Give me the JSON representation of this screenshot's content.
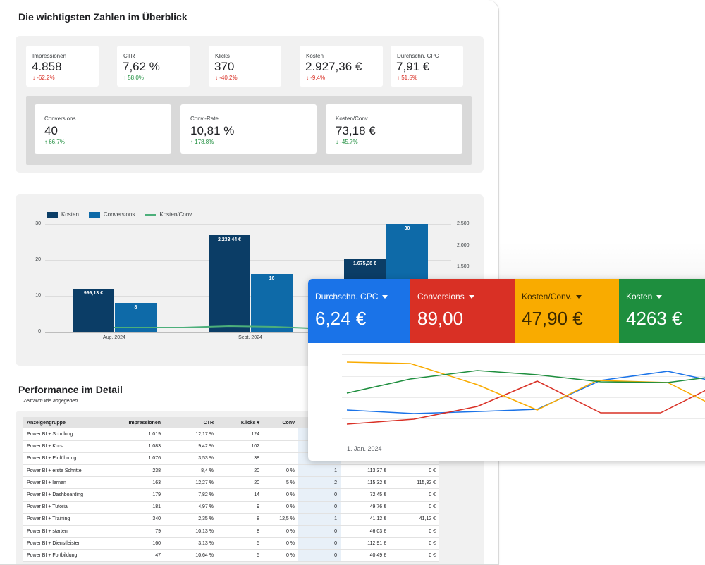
{
  "report": {
    "title": "Die wichtigsten Zahlen im Überblick",
    "kpis_top": [
      {
        "label": "Impressionen",
        "value": "4.858",
        "change": "-62,2%",
        "direction": "down"
      },
      {
        "label": "CTR",
        "value": "7,62 %",
        "change": "58,0%",
        "direction": "up"
      },
      {
        "label": "Klicks",
        "value": "370",
        "change": "-40,2%",
        "direction": "down"
      },
      {
        "label": "Kosten",
        "value": "2.927,36 €",
        "change": "-9,4%",
        "direction": "down"
      },
      {
        "label": "Durchschn. CPC",
        "value": "7,91 €",
        "change": "51,5%",
        "direction": "up_negative"
      }
    ],
    "kpis_bottom": [
      {
        "label": "Conversions",
        "value": "40",
        "change": "66,7%",
        "direction": "up"
      },
      {
        "label": "Conv.-Rate",
        "value": "10,81 %",
        "change": "178,8%",
        "direction": "up"
      },
      {
        "label": "Kosten/Conv.",
        "value": "73,18 €",
        "change": "-45,7%",
        "direction": "down_positive"
      }
    ],
    "arrow_up": "↑",
    "arrow_down": "↓"
  },
  "chart_data": [
    {
      "type": "bar",
      "legend": [
        "Kosten",
        "Conversions",
        "Kosten/Conv."
      ],
      "categories": [
        "Aug. 2024",
        "Sept. 2024",
        ""
      ],
      "series": [
        {
          "name": "Kosten",
          "values": [
            999.13,
            2233.44,
            1675.38
          ],
          "labels": [
            "999,13 €",
            "2.233,44 €",
            "1.675,38 €"
          ],
          "color": "#0b3d66"
        },
        {
          "name": "Conversions",
          "values": [
            8,
            16,
            30
          ],
          "labels": [
            "8",
            "16",
            "30"
          ],
          "color": "#0e6aa8"
        },
        {
          "name": "Kosten/Conv.",
          "type": "line",
          "color": "#4caf7a"
        }
      ],
      "y_left_ticks": [
        "30",
        "20",
        "10",
        "0"
      ],
      "y_left_range": [
        0,
        30
      ],
      "y_right_ticks": [
        "2.500",
        "2.000",
        "1.500"
      ],
      "y_right_range": [
        0,
        2500
      ],
      "legend_position": "top-left",
      "grid": true
    },
    {
      "type": "line",
      "series": [
        {
          "name": "Durchschn. CPC",
          "color": "#1a73e8"
        },
        {
          "name": "Conversions",
          "color": "#d93025"
        },
        {
          "name": "Kosten/Conv.",
          "color": "#f9ab00"
        },
        {
          "name": "Kosten",
          "color": "#1e8e3e"
        }
      ],
      "x_start_label": "1. Jan. 2024",
      "grid": true
    }
  ],
  "performance": {
    "title": "Performance im Detail",
    "subtitle": "Zeitraum wie angegeben",
    "columns": [
      "Anzeigengruppe",
      "Impressionen",
      "CTR",
      "Klicks ▾",
      "Conv",
      "",
      "",
      ""
    ],
    "rows": [
      [
        "Power BI + Schulung",
        "1.019",
        "12,17 %",
        "124",
        "",
        "",
        "",
        ""
      ],
      [
        "Power BI + Kurs",
        "1.083",
        "9,42 %",
        "102",
        "",
        "",
        "",
        ""
      ],
      [
        "Power BI + Einführung",
        "1.076",
        "3,53 %",
        "38",
        "",
        "",
        "",
        ""
      ],
      [
        "Power BI + erste Schritte",
        "238",
        "8,4 %",
        "20",
        "0 %",
        "1",
        "113,37 €",
        "0 €"
      ],
      [
        "Power BI + lernen",
        "163",
        "12,27 %",
        "20",
        "5 %",
        "2",
        "115,32 €",
        "115,32 €"
      ],
      [
        "Power BI + Dashboarding",
        "179",
        "7,82 %",
        "14",
        "0 %",
        "0",
        "72,45 €",
        "0 €"
      ],
      [
        "Power BI + Tutorial",
        "181",
        "4,97 %",
        "9",
        "0 %",
        "0",
        "49,76 €",
        "0 €"
      ],
      [
        "Power BI + Training",
        "340",
        "2,35 %",
        "8",
        "12,5 %",
        "1",
        "41,12 €",
        "41,12 €"
      ],
      [
        "Power BI + starten",
        "79",
        "10,13 %",
        "8",
        "0 %",
        "0",
        "46,03 €",
        "0 €"
      ],
      [
        "Power BI + Dienstleister",
        "160",
        "3,13 %",
        "5",
        "0 %",
        "0",
        "112,91 €",
        "0 €"
      ],
      [
        "Power BI + Fortbildung",
        "47",
        "10,64 %",
        "5",
        "0 %",
        "0",
        "40,49 €",
        "0 €"
      ]
    ]
  },
  "dashboard": {
    "kpis": [
      {
        "label": "Durchschn. CPC",
        "value": "6,24 €",
        "color": "#1a73e8",
        "text_color": "#ffffff"
      },
      {
        "label": "Conversions",
        "value": "89,00",
        "color": "#d93025",
        "text_color": "#ffffff"
      },
      {
        "label": "Kosten/Conv.",
        "value": "47,90 €",
        "color": "#f9ab00",
        "text_color": "#3c2a00"
      },
      {
        "label": "Kosten",
        "value": "4263 €",
        "color": "#1e8e3e",
        "text_color": "#ffffff"
      }
    ],
    "date_label": "1. Jan. 2024"
  }
}
